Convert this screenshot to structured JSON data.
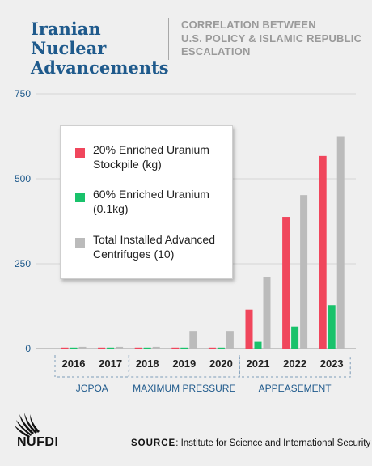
{
  "header": {
    "title_line1": "Iranian Nuclear",
    "title_line2": "Advancements",
    "subtitle_line1": "CORRELATION BETWEEN",
    "subtitle_line2": "U.S. POLICY & ISLAMIC REPUBLIC",
    "subtitle_line3": "ESCALATION"
  },
  "legend": {
    "items": [
      {
        "line1": "20% Enriched Uranium",
        "line2": "Stockpile (kg)",
        "color": "#f0465c"
      },
      {
        "line1": "60% Enriched Uranium",
        "line2": "(0.1kg)",
        "color": "#19c26b"
      },
      {
        "line1": "Total Installed Advanced",
        "line2": "Centrifuges (10)",
        "color": "#bbbbbb"
      }
    ]
  },
  "chart_data": {
    "type": "bar",
    "categories": [
      "2016",
      "2017",
      "2018",
      "2019",
      "2020",
      "2021",
      "2022",
      "2023"
    ],
    "series": [
      {
        "name": "20% Enriched Uranium Stockpile (kg)",
        "color": "#f0465c",
        "values": [
          0,
          0,
          0,
          0,
          0,
          115,
          388,
          567
        ]
      },
      {
        "name": "60% Enriched Uranium (0.1kg)",
        "color": "#19c26b",
        "values": [
          0,
          0,
          0,
          0,
          0,
          20,
          65,
          128
        ]
      },
      {
        "name": "Total Installed Advanced Centrifuges (10)",
        "color": "#bbbbbb",
        "values": [
          5,
          5,
          5,
          52,
          52,
          210,
          452,
          625
        ]
      }
    ],
    "yticks": [
      0,
      250,
      500,
      750
    ],
    "ylim": [
      0,
      750
    ],
    "grid": true,
    "periods": [
      {
        "label": "JCPOA",
        "start": 0,
        "end": 1
      },
      {
        "label": "MAXIMUM PRESSURE",
        "start": 2,
        "end": 4
      },
      {
        "label": "APPEASEMENT",
        "start": 5,
        "end": 7
      }
    ],
    "title": "",
    "xlabel": "",
    "ylabel": ""
  },
  "footer": {
    "logo_text": "NUFDI",
    "source_label": "SOURCE",
    "source_text": "Institute for Science and International Security"
  }
}
